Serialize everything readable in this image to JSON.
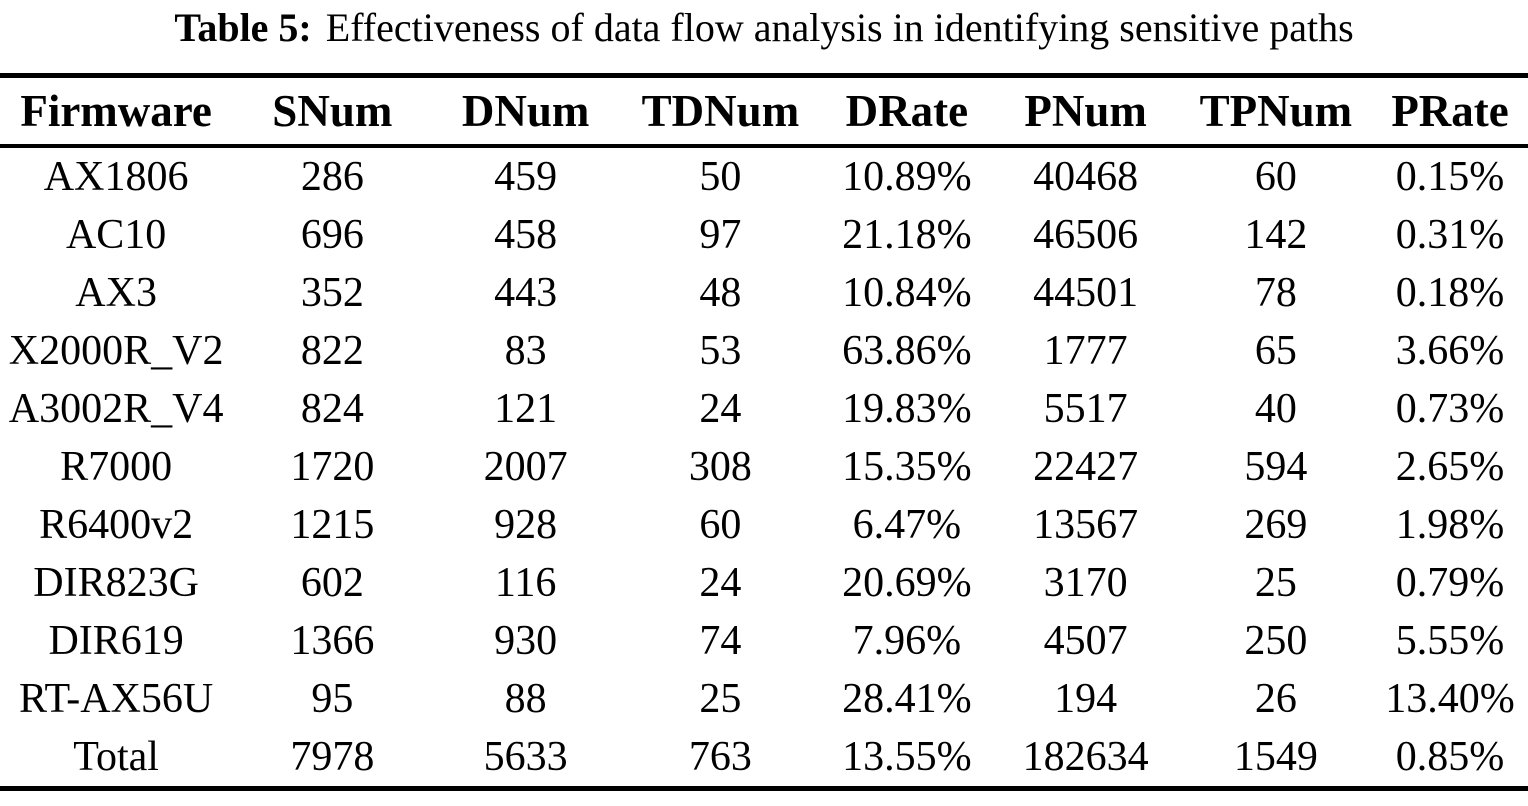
{
  "caption": {
    "label": "Table 5:",
    "text": "Effectiveness of data flow analysis in identifying sensitive paths"
  },
  "colors": {
    "text": "#000000",
    "background": "#ffffff",
    "rule": "#000000"
  },
  "table": {
    "headers": [
      "Firmware",
      "SNum",
      "DNum",
      "TDNum",
      "DRate",
      "PNum",
      "TPNum",
      "PRate"
    ],
    "rows": [
      {
        "cells": [
          "AX1806",
          "286",
          "459",
          "50",
          "10.89%",
          "40468",
          "60",
          "0.15%"
        ]
      },
      {
        "cells": [
          "AC10",
          "696",
          "458",
          "97",
          "21.18%",
          "46506",
          "142",
          "0.31%"
        ]
      },
      {
        "cells": [
          "AX3",
          "352",
          "443",
          "48",
          "10.84%",
          "44501",
          "78",
          "0.18%"
        ]
      },
      {
        "cells": [
          "X2000R_V2",
          "822",
          "83",
          "53",
          "63.86%",
          "1777",
          "65",
          "3.66%"
        ]
      },
      {
        "cells": [
          "A3002R_V4",
          "824",
          "121",
          "24",
          "19.83%",
          "5517",
          "40",
          "0.73%"
        ]
      },
      {
        "cells": [
          "R7000",
          "1720",
          "2007",
          "308",
          "15.35%",
          "22427",
          "594",
          "2.65%"
        ]
      },
      {
        "cells": [
          "R6400v2",
          "1215",
          "928",
          "60",
          "6.47%",
          "13567",
          "269",
          "1.98%"
        ]
      },
      {
        "cells": [
          "DIR823G",
          "602",
          "116",
          "24",
          "20.69%",
          "3170",
          "25",
          "0.79%"
        ]
      },
      {
        "cells": [
          "DIR619",
          "1366",
          "930",
          "74",
          "7.96%",
          "4507",
          "250",
          "5.55%"
        ]
      },
      {
        "cells": [
          "RT-AX56U",
          "95",
          "88",
          "25",
          "28.41%",
          "194",
          "26",
          "13.40%"
        ]
      },
      {
        "cells": [
          "Total",
          "7978",
          "5633",
          "763",
          "13.55%",
          "182634",
          "1549",
          "0.85%"
        ]
      }
    ]
  }
}
